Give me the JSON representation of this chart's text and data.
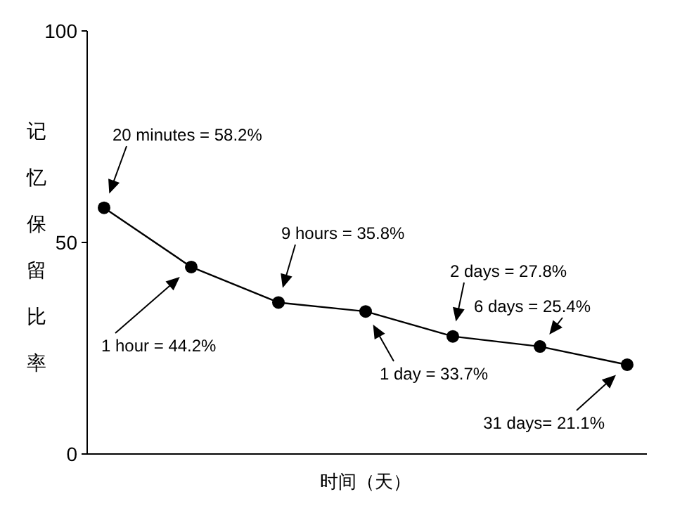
{
  "chart_data": {
    "type": "line",
    "xlabel": "时间（天）",
    "ylabel": "记忆保留比率",
    "categories": [
      null,
      null,
      null,
      null,
      null,
      null,
      null
    ],
    "series": [
      {
        "color": "#000000",
        "values": [
          58.2,
          44.2,
          35.8,
          33.7,
          27.8,
          25.4,
          21.1
        ]
      }
    ],
    "ylim": [
      0,
      100
    ],
    "yticks": [
      0,
      50,
      100
    ],
    "grid": false,
    "marker": "circle",
    "line_style": "solid",
    "annotations": [
      "20 minutes = 58.2%",
      "1 hour = 44.2%",
      "9 hours = 35.8%",
      "1 day = 33.7%",
      "2 days = 27.8%",
      "6 days = 25.4%",
      "31 days= 21.1%"
    ]
  }
}
